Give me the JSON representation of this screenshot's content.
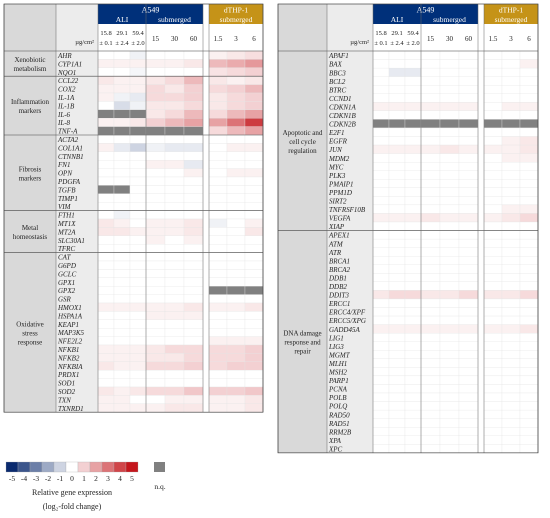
{
  "unit_label": "µg/cm²",
  "na_label": "n.q.",
  "legend": {
    "ticks": [
      "-5",
      "-4",
      "-3",
      "-2",
      "-1",
      "0",
      "1",
      "2",
      "3",
      "4",
      "5"
    ],
    "title": "Relative gene expression",
    "subtitle": "(log₂-fold change)",
    "colors": {
      "neg": "#0a2a6e",
      "pos": "#c4161c",
      "grey": "#808080",
      "header_blue": "#00307a",
      "header_gold": "#c59318"
    }
  },
  "headers": {
    "a549": "A549",
    "dthp": "dTHP-1",
    "ali": "ALI",
    "submerged": "submerged",
    "ali_doses": [
      [
        "15.8",
        "± 0.1"
      ],
      [
        "29.1",
        "± 2.4"
      ],
      [
        "59.4",
        "± 2.0"
      ]
    ],
    "sub_doses": [
      "15",
      "30",
      "60"
    ],
    "dthp_doses": [
      "1.5",
      "3",
      "6"
    ]
  },
  "left_groups": [
    {
      "label": "Xenobiotic metabolism",
      "genes": [
        "AHR",
        "CYP1A1",
        "NQO1"
      ]
    },
    {
      "label": "Inflammation markers",
      "genes": [
        "CCL22",
        "COX2",
        "IL-1A",
        "IL-1B",
        "IL-6",
        "IL-8",
        "TNF-A"
      ]
    },
    {
      "label": "Fibrosis markers",
      "genes": [
        "ACTA2",
        "COL1A1",
        "CTNNB1",
        "FN1",
        "OPN",
        "PDGFA",
        "TGFB",
        "TIMP1",
        "VIM"
      ]
    },
    {
      "label": "Metal homeostasis",
      "genes": [
        "FTH1",
        "MT1X",
        "MT2A",
        "SLC30A1",
        "TFRC"
      ]
    },
    {
      "label": "Oxidative stress response",
      "genes": [
        "CAT",
        "G6PD",
        "GCLC",
        "GPX1",
        "GPX2",
        "GSR",
        "HMOX1",
        "HSPA1A",
        "KEAP1",
        "MAP3K5",
        "NFE2L2",
        "NFKB1",
        "NFKB2",
        "NFKBIA",
        "PRDX1",
        "SOD1",
        "SOD2",
        "TXN",
        "TXNRD1"
      ]
    }
  ],
  "right_groups": [
    {
      "label": "Apoptotic and cell cycle regulation",
      "genes": [
        "APAF1",
        "BAX",
        "BBC3",
        "BCL2",
        "BTRC",
        "CCND1",
        "CDKN1A",
        "CDKN1B",
        "CDKN2B",
        "E2F1",
        "EGFR",
        "JUN",
        "MDM2",
        "MYC",
        "PLK3",
        "PMAIP1",
        "PPM1D",
        "SIRT2",
        "TNFRSF10B",
        "VEGFA",
        "XIAP"
      ]
    },
    {
      "label": "DNA damage response and repair",
      "genes": [
        "APEX1",
        "ATM",
        "ATR",
        "BRCA1",
        "BRCA2",
        "DDB1",
        "DDB2",
        "DDIT3",
        "ERCC1",
        "ERCC4/XPF",
        "ERCC5/XPG",
        "GADD45A",
        "LIG1",
        "LIG3",
        "MGMT",
        "MLH1",
        "MSH2",
        "PARP1",
        "PCNA",
        "POLB",
        "POLQ",
        "RAD50",
        "RAD51",
        "RRM2B",
        "XPA",
        "XPC"
      ]
    }
  ],
  "chart_data": {
    "type": "heatmap",
    "columns": [
      "ALI 15.8",
      "ALI 29.1",
      "ALI 59.4",
      "submerged 15",
      "submerged 30",
      "submerged 60",
      "dTHP-1 1.5",
      "dTHP-1 3",
      "dTHP-1 6"
    ],
    "scale": [
      -5,
      5
    ],
    "na_marker": "n.q.",
    "left": [
      [
        "AHR",
        [
          0,
          0,
          -0.3,
          0,
          0,
          0,
          0.3,
          0.5,
          0.7
        ]
      ],
      [
        "CYP1A1",
        [
          0.3,
          0.3,
          0.3,
          0.3,
          0.3,
          0.5,
          1.5,
          1.8,
          2.2
        ]
      ],
      [
        "NQO1",
        [
          0,
          0,
          -0.2,
          0,
          0,
          0,
          0.6,
          0.8,
          1
        ]
      ],
      [
        "CCL22",
        [
          0.5,
          0.3,
          0.3,
          0.5,
          0.8,
          1.5,
          0.5,
          0.3,
          0.5
        ]
      ],
      [
        "COX2",
        [
          0.3,
          0.3,
          0.3,
          0.8,
          0.5,
          1,
          0.8,
          1,
          1.5
        ]
      ],
      [
        "IL-1A",
        [
          0.3,
          -0.3,
          -0.5,
          0.8,
          0.8,
          1,
          0.5,
          0.8,
          1
        ]
      ],
      [
        "IL-1B",
        [
          0,
          -0.8,
          -0.3,
          0.5,
          0.5,
          0.8,
          0.5,
          0.8,
          1
        ]
      ],
      [
        "IL-6",
        [
          "n.q.",
          "n.q.",
          "n.q.",
          0.5,
          0.8,
          1.5,
          0.8,
          1.5,
          2
        ]
      ],
      [
        "IL-8",
        [
          0.3,
          0.3,
          0.5,
          1,
          1.5,
          2,
          2,
          3,
          4.2
        ]
      ],
      [
        "TNF-A",
        [
          "n.q.",
          "n.q.",
          "n.q.",
          "n.q.",
          "n.q.",
          "n.q.",
          0.8,
          1.5,
          2
        ]
      ],
      [
        "ACTA2",
        [
          0,
          0,
          0,
          0,
          0,
          0,
          0,
          0,
          0
        ]
      ],
      [
        "COL1A1",
        [
          0.3,
          -0.5,
          -1,
          -0.3,
          -0.5,
          -0.5,
          0,
          0.3,
          0.3
        ]
      ],
      [
        "CTNNB1",
        [
          0,
          0,
          0,
          0,
          0,
          0,
          0,
          0,
          0
        ]
      ],
      [
        "FN1",
        [
          0,
          0,
          0,
          0.3,
          0.3,
          -0.5,
          0,
          0,
          0
        ]
      ],
      [
        "OPN",
        [
          0,
          0,
          0,
          0,
          0,
          0.3,
          0,
          0.3,
          0.3
        ]
      ],
      [
        "PDGFA",
        [
          0,
          0,
          0,
          0,
          0,
          0,
          0,
          0,
          0
        ]
      ],
      [
        "TGFB",
        [
          "n.q.",
          "n.q.",
          0,
          0,
          0,
          0,
          0,
          0,
          0
        ]
      ],
      [
        "TIMP1",
        [
          0,
          0,
          0,
          0,
          0,
          0,
          0,
          0,
          0
        ]
      ],
      [
        "VIM",
        [
          0,
          0,
          0,
          0,
          0,
          0,
          0,
          0,
          0
        ]
      ],
      [
        "FTH1",
        [
          0,
          -0.3,
          0,
          0,
          0,
          0,
          0,
          0,
          0
        ]
      ],
      [
        "MT1X",
        [
          0.5,
          0.3,
          0,
          0.3,
          0.3,
          0.5,
          -0.3,
          0,
          0.3
        ]
      ],
      [
        "MT2A",
        [
          0.5,
          0.5,
          0.3,
          0.3,
          0.3,
          0.5,
          0,
          0,
          0.5
        ]
      ],
      [
        "SLC30A1",
        [
          0,
          0,
          0,
          0.3,
          0,
          0.3,
          0,
          0,
          0
        ]
      ],
      [
        "TFRC",
        [
          0,
          0,
          0,
          0,
          0,
          0,
          0,
          0,
          0
        ]
      ],
      [
        "CAT",
        [
          0,
          0,
          0,
          0,
          0,
          0,
          0,
          0,
          0
        ]
      ],
      [
        "G6PD",
        [
          0,
          0,
          0,
          0,
          0,
          0,
          0,
          0,
          0
        ]
      ],
      [
        "GCLC",
        [
          0,
          0,
          0,
          0,
          0,
          0,
          0,
          0,
          0
        ]
      ],
      [
        "GPX1",
        [
          0,
          0,
          0,
          0,
          0,
          0,
          0,
          0,
          0
        ]
      ],
      [
        "GPX2",
        [
          0,
          0,
          0,
          0,
          0,
          0,
          "n.q.",
          "n.q.",
          "n.q."
        ]
      ],
      [
        "GSR",
        [
          0,
          0,
          0,
          0,
          0,
          0,
          0,
          0,
          0
        ]
      ],
      [
        "HMOX1",
        [
          0.3,
          0.3,
          0.3,
          0.3,
          0.3,
          0.5,
          0.3,
          0.3,
          0.5
        ]
      ],
      [
        "HSPA1A",
        [
          0,
          0,
          0,
          0.3,
          0.3,
          0.3,
          0,
          0,
          0
        ]
      ],
      [
        "KEAP1",
        [
          0,
          0,
          0,
          0,
          0,
          0,
          0,
          0,
          0
        ]
      ],
      [
        "MAP3K5",
        [
          0,
          0,
          0,
          0,
          0,
          0,
          0,
          0,
          0
        ]
      ],
      [
        "NFE2L2",
        [
          0,
          0,
          0,
          0,
          0,
          0,
          0.3,
          0.3,
          0.3
        ]
      ],
      [
        "NFKB1",
        [
          0.3,
          0.3,
          0.3,
          0.5,
          0.8,
          0.8,
          0.8,
          0.8,
          1
        ]
      ],
      [
        "NFKB2",
        [
          0.3,
          0.3,
          0.3,
          0.5,
          0.5,
          0.8,
          0.8,
          0.8,
          1
        ]
      ],
      [
        "NFKBIA",
        [
          0.5,
          0.3,
          0.3,
          0.8,
          0.8,
          1,
          0.8,
          1,
          1
        ]
      ],
      [
        "PRDX1",
        [
          0,
          0,
          0,
          0,
          0,
          0,
          0,
          0,
          0
        ]
      ],
      [
        "SOD1",
        [
          0,
          0,
          0,
          0,
          0,
          0,
          0,
          0,
          0
        ]
      ],
      [
        "SOD2",
        [
          0.5,
          0.3,
          0.5,
          0.8,
          0.8,
          1.2,
          1,
          1,
          1.2
        ]
      ],
      [
        "TXN",
        [
          0.3,
          0.3,
          0,
          0,
          0.3,
          0.3,
          0.3,
          0.3,
          0.5
        ]
      ],
      [
        "TXNRD1",
        [
          0.3,
          0.3,
          0.3,
          0.3,
          0.5,
          0.5,
          0.3,
          0.3,
          0.5
        ]
      ]
    ],
    "right": [
      [
        "APAF1",
        [
          0,
          0,
          0,
          0,
          0,
          0,
          0,
          0,
          0
        ]
      ],
      [
        "BAX",
        [
          0,
          0,
          0,
          0,
          0,
          0,
          0,
          0,
          0.3
        ]
      ],
      [
        "BBC3",
        [
          0,
          -0.5,
          -0.5,
          0,
          0,
          0,
          0,
          0,
          0
        ]
      ],
      [
        "BCL2",
        [
          0,
          0,
          0,
          0,
          0,
          0,
          0,
          0,
          0
        ]
      ],
      [
        "BTRC",
        [
          0,
          0,
          0,
          0,
          0,
          0,
          0,
          0,
          0
        ]
      ],
      [
        "CCND1",
        [
          0,
          0,
          0,
          0,
          0,
          0,
          0,
          0,
          0
        ]
      ],
      [
        "CDKN1A",
        [
          0.3,
          0.3,
          0.3,
          0.3,
          0.3,
          0.3,
          0,
          0.3,
          0.3
        ]
      ],
      [
        "CDKN1B",
        [
          0,
          0,
          0,
          0,
          0,
          0,
          0,
          0,
          0
        ]
      ],
      [
        "CDKN2B",
        [
          "n.q.",
          "n.q.",
          "n.q.",
          "n.q.",
          "n.q.",
          "n.q.",
          "n.q.",
          "n.q.",
          "n.q."
        ]
      ],
      [
        "E2F1",
        [
          0,
          0,
          0,
          0,
          0,
          0,
          0,
          0,
          0
        ]
      ],
      [
        "EGFR",
        [
          0,
          0,
          0,
          0,
          0,
          0,
          0,
          0.3,
          0.5
        ]
      ],
      [
        "JUN",
        [
          0.3,
          0.3,
          0.3,
          0.3,
          0.5,
          0.3,
          0.3,
          0.3,
          0.5
        ]
      ],
      [
        "MDM2",
        [
          0,
          0,
          0,
          0,
          0,
          0,
          0,
          0.3,
          0.3
        ]
      ],
      [
        "MYC",
        [
          0,
          0,
          0,
          0,
          0,
          0,
          0,
          0,
          0
        ]
      ],
      [
        "PLK3",
        [
          0,
          0,
          0,
          0,
          0,
          0,
          0,
          0,
          0
        ]
      ],
      [
        "PMAIP1",
        [
          0,
          0,
          0,
          0,
          0,
          0,
          0,
          0,
          0
        ]
      ],
      [
        "PPM1D",
        [
          0,
          0,
          0,
          0,
          0,
          0,
          0,
          0,
          0
        ]
      ],
      [
        "SIRT2",
        [
          0,
          0,
          0,
          0,
          0,
          0,
          0,
          0,
          0
        ]
      ],
      [
        "TNFRSF10B",
        [
          0,
          0,
          0,
          0,
          0,
          0,
          0,
          0.3,
          0.3
        ]
      ],
      [
        "VEGFA",
        [
          0.3,
          0.3,
          0.3,
          0.5,
          0.3,
          0.3,
          0.3,
          0.5,
          0.8
        ]
      ],
      [
        "XIAP",
        [
          0,
          0,
          0,
          0,
          0,
          0,
          0,
          0,
          0
        ]
      ],
      [
        "APEX1",
        [
          0,
          0,
          0,
          0,
          0,
          0,
          0,
          0,
          0
        ]
      ],
      [
        "ATM",
        [
          0,
          0,
          0,
          0,
          0,
          0,
          0,
          0,
          0
        ]
      ],
      [
        "ATR",
        [
          0,
          0,
          0,
          0,
          0,
          0,
          0,
          0,
          0
        ]
      ],
      [
        "BRCA1",
        [
          0,
          0,
          0,
          0,
          0,
          0,
          0,
          0,
          0
        ]
      ],
      [
        "BRCA2",
        [
          0,
          0,
          0,
          0,
          0,
          0,
          0,
          0,
          0
        ]
      ],
      [
        "DDB1",
        [
          0,
          0,
          0,
          0,
          0,
          0,
          0,
          0,
          0
        ]
      ],
      [
        "DDB2",
        [
          0,
          0,
          0,
          0,
          0,
          0,
          0,
          0,
          0
        ]
      ],
      [
        "DDIT3",
        [
          0.5,
          0.8,
          0.8,
          0.5,
          0.5,
          0.8,
          0.5,
          0.5,
          0.8
        ]
      ],
      [
        "ERCC1",
        [
          0,
          0,
          0,
          0,
          0,
          0,
          0,
          0,
          0
        ]
      ],
      [
        "ERCC4/XPF",
        [
          0,
          0,
          0,
          0,
          0,
          0,
          0,
          0,
          0
        ]
      ],
      [
        "ERCC5/XPG",
        [
          0,
          0,
          0,
          0,
          0,
          0,
          0,
          0,
          0
        ]
      ],
      [
        "GADD45A",
        [
          0.3,
          0.3,
          0.3,
          0.3,
          0.3,
          0.3,
          0.3,
          0.3,
          0.5
        ]
      ],
      [
        "LIG1",
        [
          0,
          0,
          0,
          0,
          0,
          0,
          0,
          0,
          0
        ]
      ],
      [
        "LIG3",
        [
          0,
          0,
          0,
          0,
          0,
          0,
          0,
          0,
          0
        ]
      ],
      [
        "MGMT",
        [
          0,
          0,
          0,
          0,
          0,
          0,
          0,
          0,
          0
        ]
      ],
      [
        "MLH1",
        [
          0,
          0,
          0,
          0,
          0,
          0,
          0,
          0,
          0
        ]
      ],
      [
        "MSH2",
        [
          0,
          0,
          0,
          0,
          0,
          0,
          0,
          0,
          0
        ]
      ],
      [
        "PARP1",
        [
          0,
          0,
          0,
          0,
          0,
          0,
          0,
          0,
          0
        ]
      ],
      [
        "PCNA",
        [
          0,
          0,
          0,
          0,
          0,
          0,
          0,
          0,
          0
        ]
      ],
      [
        "POLB",
        [
          0,
          0,
          0,
          0,
          0,
          0,
          0,
          0,
          0
        ]
      ],
      [
        "POLQ",
        [
          0,
          0,
          0,
          0,
          0,
          0,
          0,
          0,
          0
        ]
      ],
      [
        "RAD50",
        [
          0,
          0,
          0,
          0,
          0,
          0,
          0,
          0,
          0
        ]
      ],
      [
        "RAD51",
        [
          0,
          0,
          0,
          0,
          0,
          0,
          0,
          0,
          0
        ]
      ],
      [
        "RRM2B",
        [
          0,
          0,
          0,
          0,
          0,
          0,
          0,
          0,
          0
        ]
      ],
      [
        "XPA",
        [
          0,
          0,
          0,
          0,
          0,
          0,
          0,
          0,
          0
        ]
      ],
      [
        "XPC",
        [
          0,
          0,
          0,
          0,
          0,
          0,
          0,
          0,
          0
        ]
      ]
    ]
  }
}
